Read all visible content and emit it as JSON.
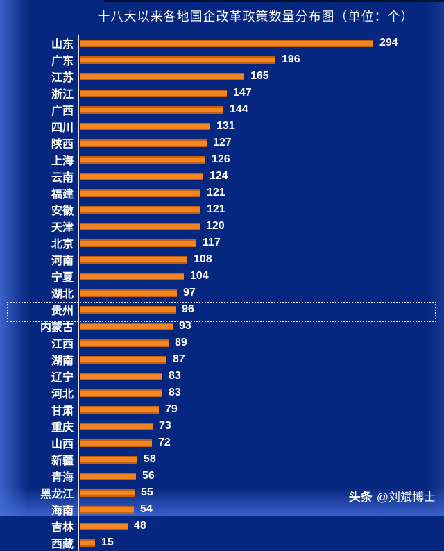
{
  "title": "十八大以来各地国企改革政策数量分布图（单位：个）",
  "watermark": {
    "brand": "头条",
    "handle": "@刘斌博士"
  },
  "highlight": {
    "category": "贵州",
    "style": "dotted-box"
  },
  "colors": {
    "background": "#06277f",
    "bar": "#f5831f",
    "bar_edge": "#b85c0a",
    "text": "#ffffff",
    "axis": "#dfe8ff",
    "highlight_border": "#e8edff"
  },
  "chart_data": {
    "type": "bar",
    "orientation": "horizontal",
    "title": "十八大以来各地国企改革政策数量分布图（单位：个）",
    "unit": "个",
    "categories": [
      "山东",
      "广东",
      "江苏",
      "浙江",
      "广西",
      "四川",
      "陕西",
      "上海",
      "云南",
      "福建",
      "安徽",
      "天津",
      "北京",
      "河南",
      "宁夏",
      "湖北",
      "贵州",
      "内蒙古",
      "江西",
      "湖南",
      "辽宁",
      "河北",
      "甘肃",
      "重庆",
      "山西",
      "新疆",
      "青海",
      "黑龙江",
      "海南",
      "吉林",
      "西藏"
    ],
    "values": [
      294,
      196,
      165,
      147,
      144,
      131,
      127,
      126,
      124,
      121,
      121,
      120,
      117,
      108,
      104,
      97,
      96,
      93,
      89,
      87,
      83,
      83,
      79,
      73,
      72,
      58,
      56,
      55,
      54,
      48,
      15
    ],
    "xlim": [
      0,
      294
    ],
    "value_labels": true,
    "grid": false,
    "legend": null
  }
}
